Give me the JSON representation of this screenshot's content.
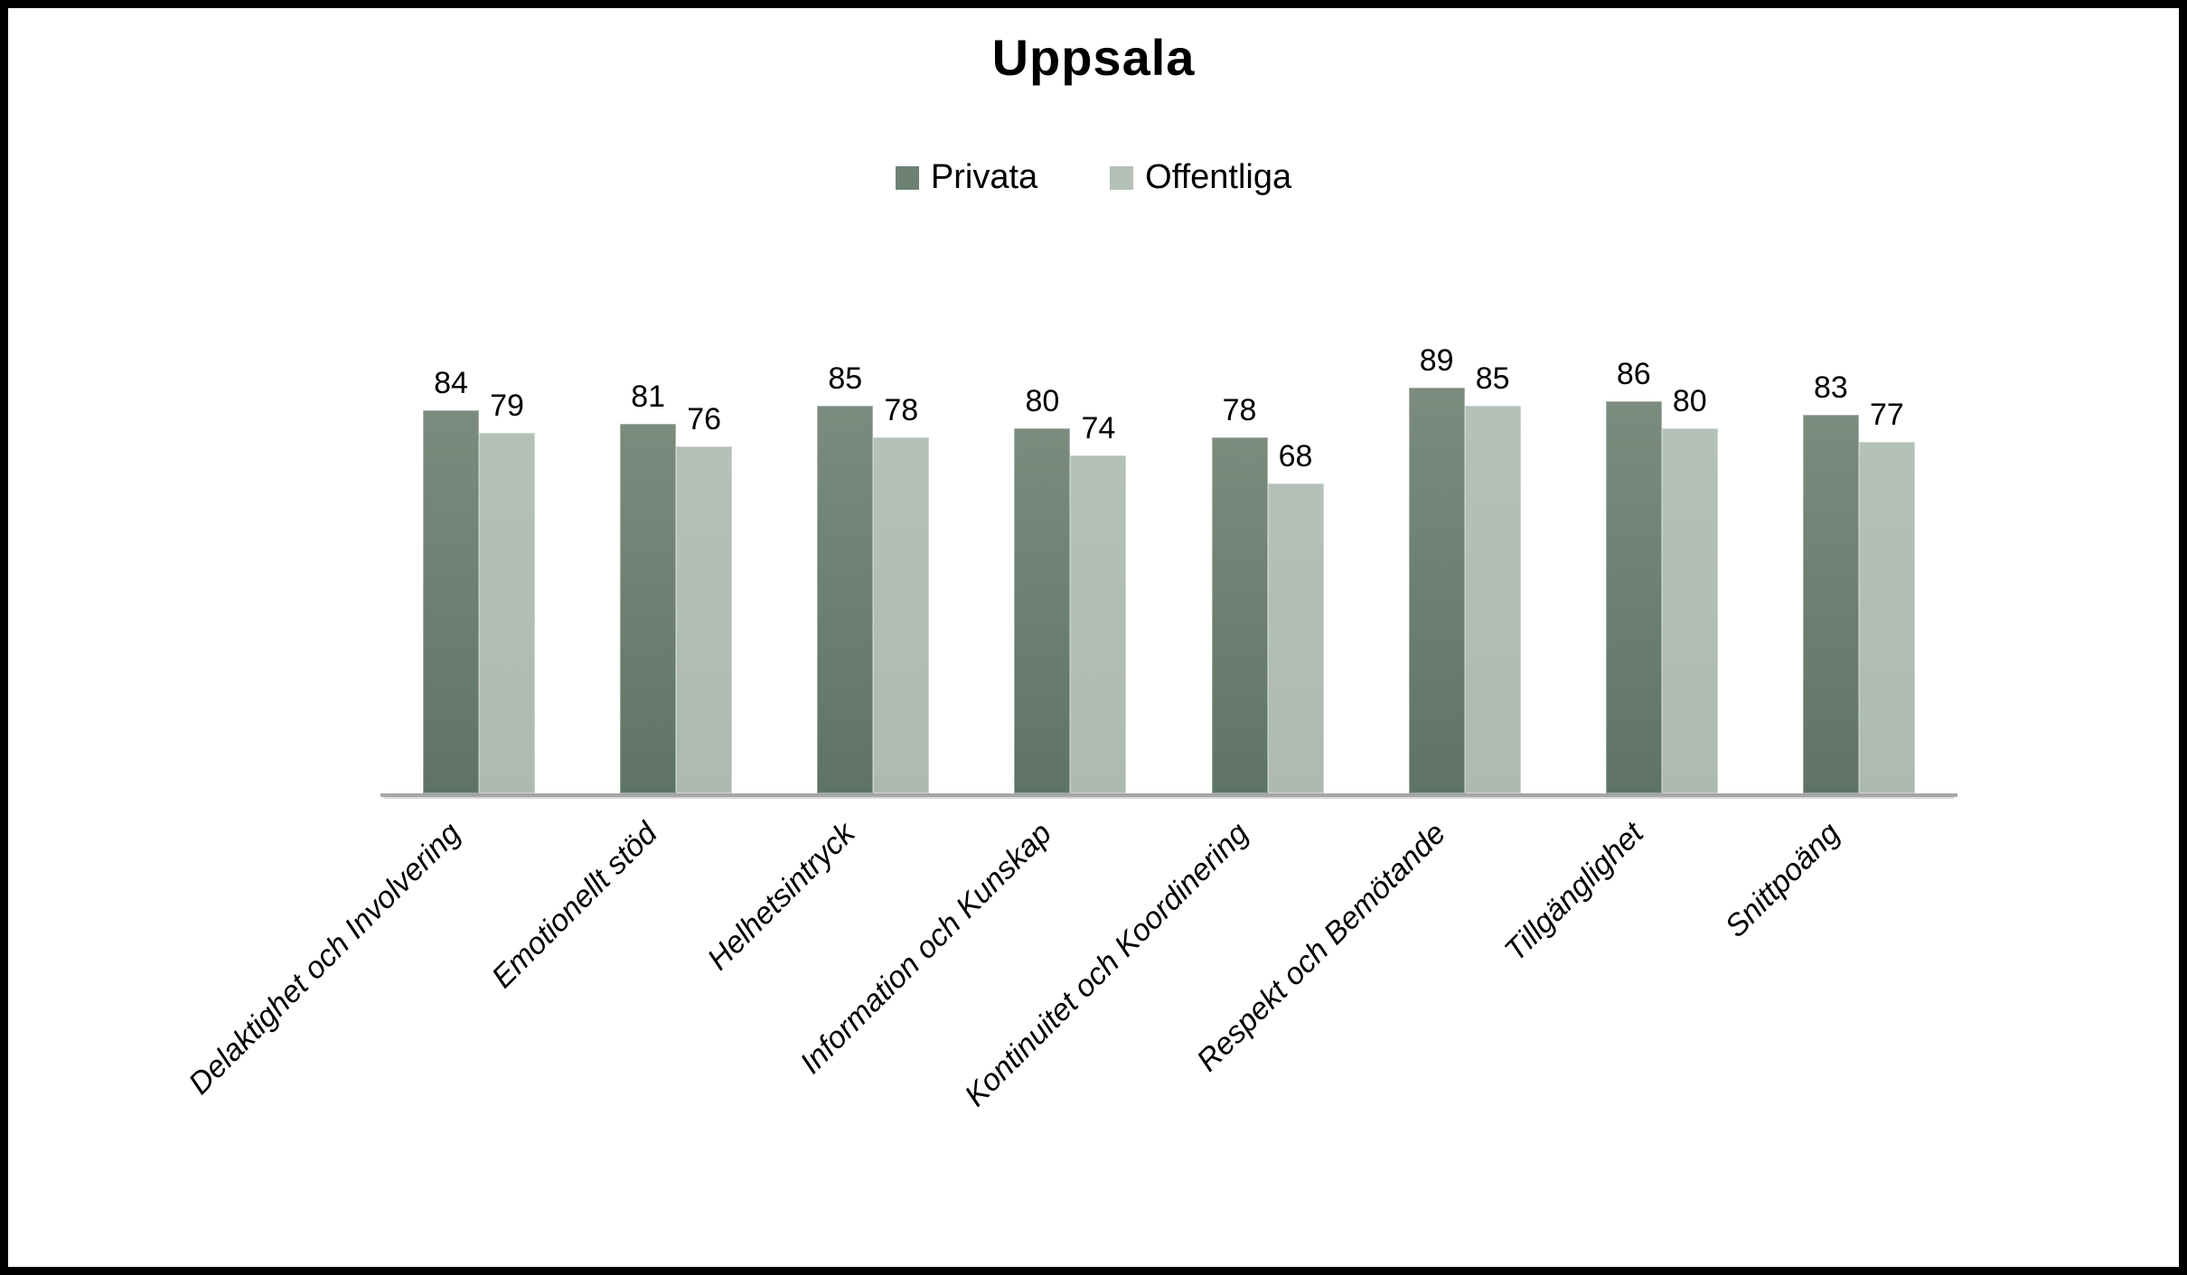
{
  "title": "Uppsala",
  "legend": {
    "items": [
      {
        "label": "Privata",
        "color": "#6d8173"
      },
      {
        "label": "Offentliga",
        "color": "#b3c0b7"
      }
    ]
  },
  "colors": {
    "bar_dark_top": "#7b8c7f",
    "bar_dark_bottom": "#5e7366",
    "bar_light_top": "#b4c1b8",
    "bar_light_bottom": "#adbab1",
    "axis_line": "#a6a6a6",
    "text": "#000000",
    "background": "#ffffff",
    "frame_border": "#000000"
  },
  "chart_data": {
    "type": "bar",
    "title": "Uppsala",
    "categories": [
      "Delaktighet och Involvering",
      "Emotionellt stöd",
      "Helhetsintryck",
      "Information och Kunskap",
      "Kontinuitet och Koordinering",
      "Respekt och Bemötande",
      "Tillgänglighet",
      "Snittpoäng"
    ],
    "series": [
      {
        "name": "Privata",
        "values": [
          84,
          81,
          85,
          80,
          78,
          89,
          86,
          83
        ]
      },
      {
        "name": "Offentliga",
        "values": [
          79,
          76,
          78,
          74,
          68,
          85,
          80,
          77
        ]
      }
    ],
    "ylim": [
      0,
      100
    ],
    "grid": false,
    "legend_position": "top",
    "data_labels": true,
    "xlabel": "",
    "ylabel": "",
    "category_label_rotation_deg": 45,
    "category_label_style": "italic"
  }
}
